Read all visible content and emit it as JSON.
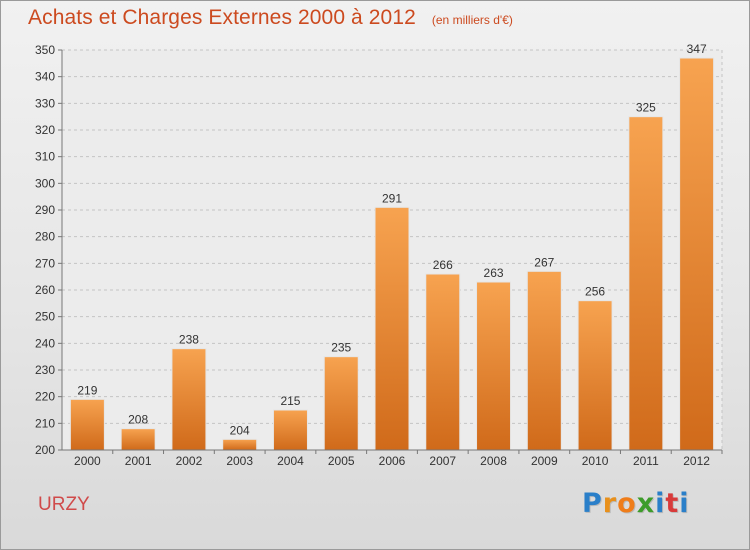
{
  "header": {
    "title": "Achats et Charges Externes 2000 à 2012",
    "subtitle": "(en milliers d'€)"
  },
  "footer": {
    "commune": "URZY",
    "logo_text": "Proxiti"
  },
  "colors": {
    "bar_top": "#f7a350",
    "bar_bottom": "#d06a1a",
    "title": "#cc4a1f",
    "commune": "#d04a4a"
  },
  "chart_data": {
    "type": "bar",
    "title": "Achats et Charges Externes 2000 à 2012",
    "subtitle": "(en milliers d'€)",
    "xlabel": "",
    "ylabel": "",
    "categories": [
      "2000",
      "2001",
      "2002",
      "2003",
      "2004",
      "2005",
      "2006",
      "2007",
      "2008",
      "2009",
      "2010",
      "2011",
      "2012"
    ],
    "values": [
      219,
      208,
      238,
      204,
      215,
      235,
      291,
      266,
      263,
      267,
      256,
      325,
      347
    ],
    "ylim": [
      200,
      350
    ],
    "yticks": [
      200,
      210,
      220,
      230,
      240,
      250,
      260,
      270,
      280,
      290,
      300,
      310,
      320,
      330,
      340,
      350
    ],
    "grid": true,
    "data_labels": true
  }
}
